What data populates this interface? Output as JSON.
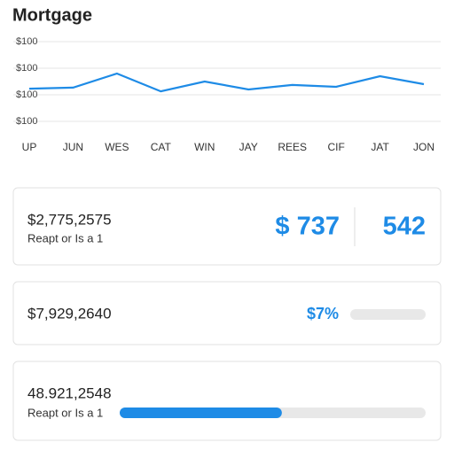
{
  "header": {
    "title": "Mortgage"
  },
  "chart_data": {
    "type": "line",
    "categories": [
      "UP",
      "JUN",
      "WES",
      "CAT",
      "WIN",
      "JAY",
      "REES",
      "CIF",
      "JAT",
      "JON"
    ],
    "series": [
      {
        "color": "#1e8be6",
        "values": [
          2.23,
          2.27,
          2.8,
          2.13,
          2.5,
          2.2,
          2.37,
          2.3,
          2.7,
          2.4
        ]
      }
    ],
    "ylim": [
      0.6,
      4.4
    ],
    "yticks": [
      {
        "value": 4,
        "label": "$100"
      },
      {
        "value": 3,
        "label": "$100"
      },
      {
        "value": 2,
        "label": "$100"
      },
      {
        "value": 1,
        "label": "$100"
      }
    ],
    "grid": true
  },
  "cards": [
    {
      "amount": "$2,775,2575",
      "subtitle": "Reapt or Is a 1",
      "stat": "$ 737",
      "stat2": "542"
    },
    {
      "amount": "$7,929,2640",
      "stat": "$7%"
    },
    {
      "amount": "48.921,2548",
      "subtitle": "Reapt or Is a 1",
      "progress": 53
    }
  ]
}
